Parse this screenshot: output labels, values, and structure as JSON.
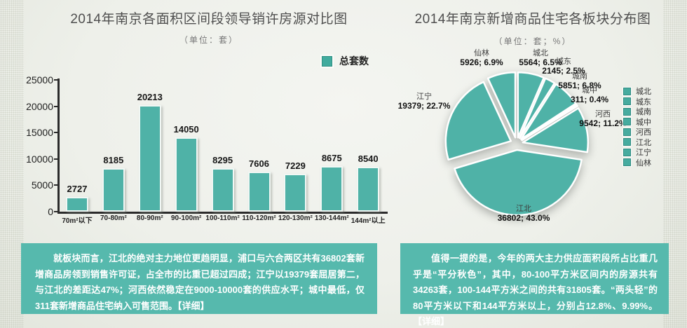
{
  "page": {
    "teal": "#4fb2a7",
    "note_background": "#56b9ad"
  },
  "chart_data": [
    {
      "type": "bar",
      "title": "2014年南京各面积区间段领导销许房源对比图",
      "subtitle": "（单位：套）",
      "legend": [
        "总套数"
      ],
      "categories": [
        "70m²以下",
        "70-80m²",
        "80-90m²",
        "90-100m²",
        "100-110m²",
        "110-120m²",
        "120-130m²",
        "130-144m²",
        "144m²以上"
      ],
      "values": [
        2727,
        8185,
        20213,
        14050,
        8295,
        7606,
        7229,
        8675,
        8540
      ],
      "y_ticks": [
        0,
        5000,
        10000,
        15000,
        20000,
        25000
      ],
      "ylim": [
        0,
        25000
      ],
      "xlabel": "",
      "ylabel": "",
      "grid": false,
      "legend_position": "top-right",
      "bar_color": "#4fb2a7"
    },
    {
      "type": "pie",
      "title": "2014年南京新增商品住宅各板块分布图",
      "subtitle": "（单位：套；%）",
      "start_angle_deg": 0,
      "direction": "clockwise",
      "color": "#4fb2a7",
      "slices": [
        {
          "name": "城北",
          "value": 5564,
          "pct": "6.5%"
        },
        {
          "name": "城东",
          "value": 2145,
          "pct": "2.5%"
        },
        {
          "name": "城南",
          "value": 5851,
          "pct": "6.8%"
        },
        {
          "name": "城中",
          "value": 311,
          "pct": "0.4%"
        },
        {
          "name": "河西",
          "value": 9542,
          "pct": "11.2%"
        },
        {
          "name": "江北",
          "value": 36802,
          "pct": "43.0%"
        },
        {
          "name": "江宁",
          "value": 19379,
          "pct": "22.7%"
        },
        {
          "name": "仙林",
          "value": 5926,
          "pct": "6.9%"
        }
      ],
      "legend": [
        "城北",
        "城东",
        "城南",
        "城中",
        "河西",
        "江北",
        "江宁",
        "仙林"
      ],
      "legend_position": "right"
    }
  ],
  "notes": {
    "left": {
      "body": "就板块而言，江北的绝对主力地位更趋明显，浦口与六合两区共有36802套新增商品房领到销售许可证，占全市的比重已超过四成；江宁以19379套屈居第二，与江北的差距达47%；河西依然稳定在9000-10000套的供应水平；城中最低，仅311套新增商品住宅纳入可售范围。",
      "link": "【详细】"
    },
    "right": {
      "body": "值得一提的是，今年的两大主力供应面积段所占比重几乎是“平分秋色”，其中，80-100平方米区间内的房源共有34263套，100-144平方米之间的共有31805套。“两头轻”的80平方米以下和144平方米以上，分别占12.8%、9.99%。",
      "link": "【详细】"
    }
  }
}
